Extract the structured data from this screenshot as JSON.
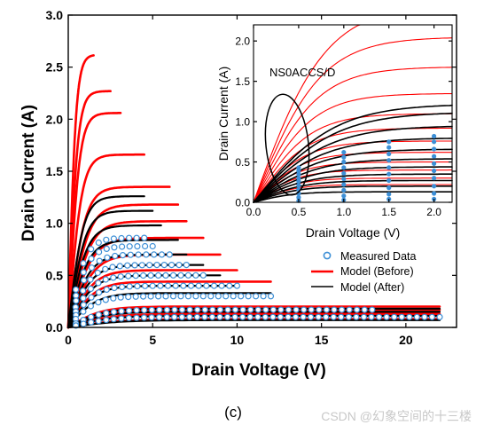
{
  "caption": "(c)",
  "watermark": "CSDN @幻象空间的十三楼",
  "colors": {
    "measured": "#3d8fd6",
    "model_before": "#ff0000",
    "model_after": "#000000",
    "axis": "#000000"
  },
  "chart_data": [
    {
      "type": "line",
      "xlabel": "Drain Voltage (V)",
      "ylabel": "Drain Current (A)",
      "xlim": [
        0,
        23
      ],
      "ylim": [
        0,
        3.0
      ],
      "xticks": [
        0,
        5,
        10,
        15,
        20
      ],
      "yticks": [
        0.0,
        0.5,
        1.0,
        1.5,
        2.0,
        2.5,
        3.0
      ],
      "legend": {
        "position": "bottom-right",
        "entries": [
          {
            "label": "Measured Data",
            "marker": "circle",
            "color": "#3d8fd6"
          },
          {
            "label": "Model (Before)",
            "marker": "line",
            "color": "#ff0000"
          },
          {
            "label": "Model (After)",
            "marker": "line",
            "color": "#000000"
          }
        ]
      },
      "series": [
        {
          "kind": "model_before",
          "curves": [
            {
              "sat": 2.62,
              "knee": 0.45,
              "vmax": 1.5
            },
            {
              "sat": 2.27,
              "knee": 0.55,
              "vmax": 2.5
            },
            {
              "sat": 2.06,
              "knee": 0.65,
              "vmax": 3.1
            },
            {
              "sat": 1.66,
              "knee": 0.8,
              "vmax": 4.5
            },
            {
              "sat": 1.35,
              "knee": 1.0,
              "vmax": 6.0
            },
            {
              "sat": 1.18,
              "knee": 1.2,
              "vmax": 6.5
            },
            {
              "sat": 1.02,
              "knee": 1.3,
              "vmax": 7.0
            },
            {
              "sat": 0.86,
              "knee": 1.4,
              "vmax": 8.0
            },
            {
              "sat": 0.7,
              "knee": 1.5,
              "vmax": 9.0
            },
            {
              "sat": 0.55,
              "knee": 1.5,
              "vmax": 10.0
            },
            {
              "sat": 0.44,
              "knee": 1.6,
              "vmax": 12.0
            },
            {
              "sat": 0.2,
              "knee": 2.0,
              "vmax": 22.0
            },
            {
              "sat": 0.17,
              "knee": 2.2,
              "vmax": 22.0
            },
            {
              "sat": 0.13,
              "knee": 2.5,
              "vmax": 22.0
            },
            {
              "sat": 0.08,
              "knee": 3.0,
              "vmax": 22.0
            }
          ]
        },
        {
          "kind": "model_after",
          "curves": [
            {
              "sat": 1.26,
              "knee": 0.9,
              "vmax": 4.5
            },
            {
              "sat": 1.12,
              "knee": 1.0,
              "vmax": 5.0
            },
            {
              "sat": 0.98,
              "knee": 1.1,
              "vmax": 5.5
            },
            {
              "sat": 0.84,
              "knee": 1.2,
              "vmax": 6.5
            },
            {
              "sat": 0.7,
              "knee": 1.3,
              "vmax": 7.0
            },
            {
              "sat": 0.6,
              "knee": 1.4,
              "vmax": 8.0
            },
            {
              "sat": 0.5,
              "knee": 1.5,
              "vmax": 9.0
            },
            {
              "sat": 0.4,
              "knee": 1.6,
              "vmax": 10.0
            },
            {
              "sat": 0.33,
              "knee": 1.7,
              "vmax": 12.0
            },
            {
              "sat": 0.18,
              "knee": 2.0,
              "vmax": 22.0
            },
            {
              "sat": 0.15,
              "knee": 2.2,
              "vmax": 22.0
            },
            {
              "sat": 0.11,
              "knee": 2.5,
              "vmax": 22.0
            },
            {
              "sat": 0.07,
              "knee": 3.0,
              "vmax": 22.0
            }
          ]
        },
        {
          "kind": "measured",
          "curves": [
            {
              "sat": 0.86,
              "knee": 1.0,
              "vmax": 4.5
            },
            {
              "sat": 0.78,
              "knee": 1.1,
              "vmax": 5.0
            },
            {
              "sat": 0.7,
              "knee": 1.2,
              "vmax": 6.0
            },
            {
              "sat": 0.6,
              "knee": 1.3,
              "vmax": 7.0
            },
            {
              "sat": 0.5,
              "knee": 1.4,
              "vmax": 8.0
            },
            {
              "sat": 0.4,
              "knee": 1.5,
              "vmax": 10.0
            },
            {
              "sat": 0.3,
              "knee": 1.6,
              "vmax": 12.0
            },
            {
              "sat": 0.17,
              "knee": 2.0,
              "vmax": 18.0
            },
            {
              "sat": 0.1,
              "knee": 2.5,
              "vmax": 22.0
            }
          ]
        }
      ]
    },
    {
      "type": "line",
      "annotation": "NS0ACCS/D",
      "xlabel": "Drain Voltage (V)",
      "ylabel": "Drain Current (A)",
      "xlim": [
        0,
        2.2
      ],
      "ylim": [
        0,
        2.2
      ],
      "xticks": [
        0.0,
        0.5,
        1.0,
        1.5,
        2.0
      ],
      "yticks": [
        0.0,
        0.5,
        1.0,
        1.5,
        2.0
      ],
      "series": [
        {
          "kind": "model_before",
          "curves": [
            {
              "sat": 2.45,
              "knee": 0.8
            },
            {
              "sat": 2.05,
              "knee": 0.75
            },
            {
              "sat": 1.68,
              "knee": 0.7
            },
            {
              "sat": 1.35,
              "knee": 0.65
            },
            {
              "sat": 1.1,
              "knee": 0.62
            },
            {
              "sat": 0.92,
              "knee": 0.6
            },
            {
              "sat": 0.76,
              "knee": 0.58
            },
            {
              "sat": 0.62,
              "knee": 0.55
            },
            {
              "sat": 0.5,
              "knee": 0.52
            },
            {
              "sat": 0.4,
              "knee": 0.5
            },
            {
              "sat": 0.3,
              "knee": 0.48
            },
            {
              "sat": 0.22,
              "knee": 0.45
            }
          ]
        },
        {
          "kind": "model_after",
          "curves": [
            {
              "sat": 1.22,
              "knee": 0.9
            },
            {
              "sat": 1.12,
              "knee": 0.9
            },
            {
              "sat": 0.95,
              "knee": 0.85
            },
            {
              "sat": 0.8,
              "knee": 0.8
            },
            {
              "sat": 0.66,
              "knee": 0.75
            },
            {
              "sat": 0.54,
              "knee": 0.7
            },
            {
              "sat": 0.44,
              "knee": 0.65
            },
            {
              "sat": 0.35,
              "knee": 0.6
            },
            {
              "sat": 0.27,
              "knee": 0.55
            },
            {
              "sat": 0.2,
              "knee": 0.5
            },
            {
              "sat": 0.13,
              "knee": 0.45
            }
          ]
        },
        {
          "kind": "measured",
          "x": [
            0.5,
            1.0,
            1.5,
            2.0
          ],
          "curves": [
            {
              "y": [
                0.43,
                0.62,
                0.75,
                0.82
              ]
            },
            {
              "y": [
                0.39,
                0.56,
                0.68,
                0.75
              ]
            },
            {
              "y": [
                0.35,
                0.5,
                0.6,
                0.66
              ]
            },
            {
              "y": [
                0.3,
                0.43,
                0.52,
                0.57
              ]
            },
            {
              "y": [
                0.26,
                0.36,
                0.43,
                0.48
              ]
            },
            {
              "y": [
                0.21,
                0.29,
                0.35,
                0.39
              ]
            },
            {
              "y": [
                0.16,
                0.22,
                0.27,
                0.3
              ]
            },
            {
              "y": [
                0.11,
                0.15,
                0.18,
                0.2
              ]
            },
            {
              "y": [
                0.06,
                0.08,
                0.1,
                0.11
              ]
            },
            {
              "y": [
                0.02,
                0.03,
                0.04,
                0.04
              ]
            }
          ]
        }
      ]
    }
  ]
}
